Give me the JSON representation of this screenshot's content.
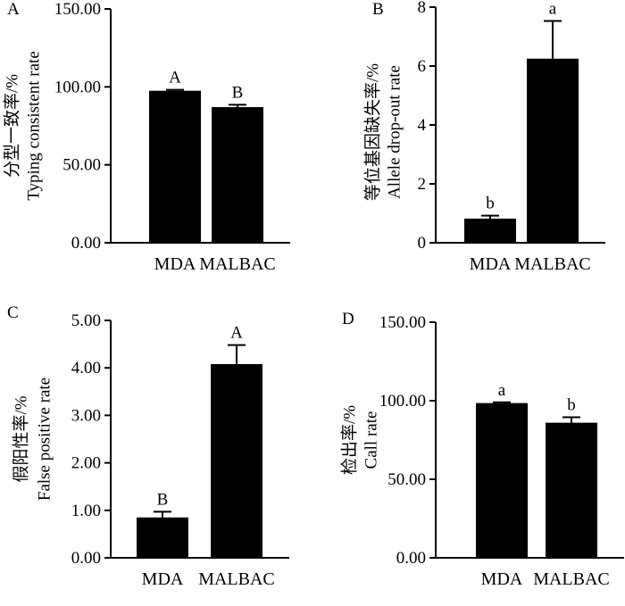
{
  "chart_data": [
    {
      "panel": "A",
      "type": "bar",
      "categories": [
        "MDA",
        "MALBAC"
      ],
      "values": [
        97.5,
        87.0
      ],
      "errors": [
        0.6,
        1.5
      ],
      "significance": [
        "A",
        "B"
      ],
      "ylabel_cn": "分型一致率/%",
      "ylabel": "Typing consistent rate",
      "ylim": [
        0,
        150
      ],
      "yticks": [
        "0.00",
        "50.00",
        "100.00",
        "150.00"
      ]
    },
    {
      "panel": "B",
      "type": "bar",
      "categories": [
        "MDA",
        "MALBAC"
      ],
      "values": [
        0.82,
        6.25
      ],
      "errors": [
        0.1,
        1.28
      ],
      "significance": [
        "b",
        "a"
      ],
      "ylabel_cn": "等位基因缺失率/%",
      "ylabel": "Allele drop-out rate",
      "ylim": [
        0,
        8
      ],
      "yticks": [
        "0",
        "2",
        "4",
        "6",
        "8"
      ]
    },
    {
      "panel": "C",
      "type": "bar",
      "categories": [
        "MDA",
        "MALBAC"
      ],
      "values": [
        0.85,
        4.08
      ],
      "errors": [
        0.12,
        0.4
      ],
      "significance": [
        "B",
        "A"
      ],
      "ylabel_cn": "假阳性率/%",
      "ylabel": "False positive rate",
      "ylim": [
        0,
        5
      ],
      "yticks": [
        "0.00",
        "1.00",
        "2.00",
        "3.00",
        "4.00",
        "5.00"
      ]
    },
    {
      "panel": "D",
      "type": "bar",
      "categories": [
        "MDA",
        "MALBAC"
      ],
      "values": [
        98.5,
        86.0
      ],
      "errors": [
        0.5,
        3.5
      ],
      "significance": [
        "a",
        "b"
      ],
      "ylabel_cn": "检出率/%",
      "ylabel": "Call rate",
      "ylim": [
        0,
        150
      ],
      "yticks": [
        "0.00",
        "50.00",
        "100.00",
        "150.00"
      ]
    }
  ]
}
